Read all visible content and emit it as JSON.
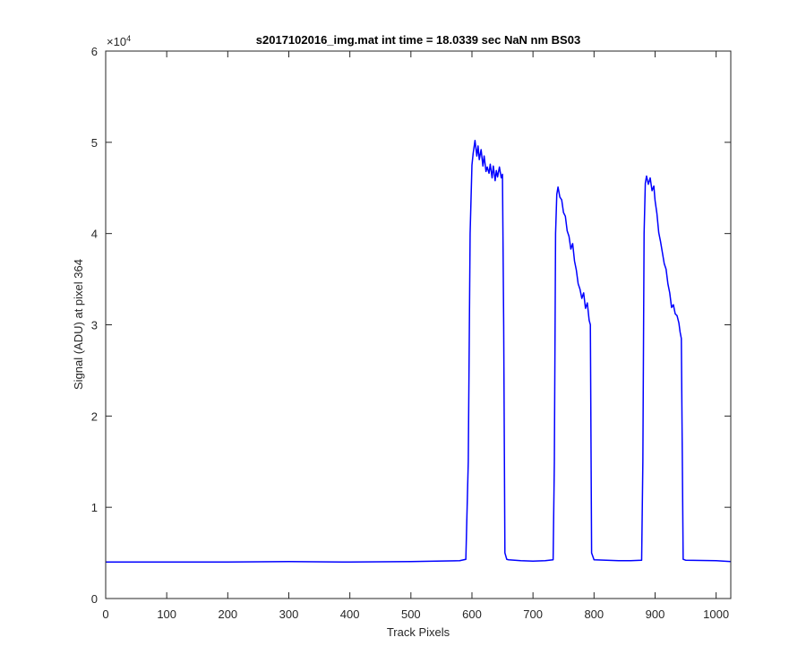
{
  "chart_data": {
    "type": "line",
    "title": "s2017102016_img.mat int time = 18.0339 sec  NaN nm BS03",
    "xlabel": "Track Pixels",
    "ylabel": "Signal (ADU) at pixel 364",
    "xlim": [
      0,
      1024
    ],
    "ylim": [
      0,
      60000
    ],
    "x_ticks": [
      0,
      100,
      200,
      300,
      400,
      500,
      600,
      700,
      800,
      900,
      1000
    ],
    "y_ticks": [
      0,
      1,
      2,
      3,
      4,
      5,
      6
    ],
    "y_multiplier_base": "×10",
    "y_multiplier_exponent": "4",
    "grid": false,
    "series": [
      {
        "color": "#0000ff",
        "x": [
          0,
          100,
          200,
          300,
          400,
          500,
          580,
          590,
          594,
          597,
          600,
          602,
          605,
          608,
          610,
          612,
          615,
          618,
          620,
          623,
          625,
          628,
          630,
          633,
          635,
          638,
          640,
          642,
          645,
          648,
          650,
          652,
          654,
          657,
          660,
          680,
          700,
          720,
          733,
          735,
          737,
          739,
          741,
          744,
          747,
          750,
          753,
          756,
          759,
          762,
          765,
          768,
          771,
          774,
          777,
          780,
          783,
          786,
          789,
          792,
          794,
          796,
          800,
          820,
          840,
          860,
          878,
          880,
          882,
          884,
          886,
          889,
          892,
          895,
          898,
          900,
          903,
          906,
          909,
          912,
          915,
          918,
          921,
          924,
          927,
          930,
          933,
          936,
          939,
          941,
          943,
          946,
          950,
          1000,
          1024
        ],
        "y": [
          4000,
          4000,
          4000,
          4050,
          4000,
          4050,
          4150,
          4300,
          15000,
          40000,
          47500,
          48800,
          50200,
          48500,
          49600,
          48100,
          49200,
          47400,
          48500,
          46800,
          47300,
          46600,
          47600,
          46100,
          47400,
          45800,
          46900,
          46200,
          47300,
          46100,
          46500,
          30000,
          5000,
          4300,
          4250,
          4150,
          4100,
          4150,
          4250,
          15000,
          40000,
          44300,
          45100,
          44000,
          43700,
          42300,
          41900,
          40300,
          39700,
          38300,
          38900,
          37000,
          36000,
          34500,
          33900,
          32900,
          33500,
          31800,
          32400,
          30500,
          30000,
          5000,
          4250,
          4200,
          4150,
          4150,
          4200,
          15000,
          40000,
          45500,
          46300,
          45400,
          46100,
          44700,
          45200,
          43600,
          42200,
          40100,
          39100,
          37900,
          36700,
          36100,
          34500,
          33500,
          31900,
          32200,
          31200,
          31000,
          30200,
          29200,
          28500,
          4300,
          4200,
          4150,
          4050
        ]
      }
    ]
  }
}
